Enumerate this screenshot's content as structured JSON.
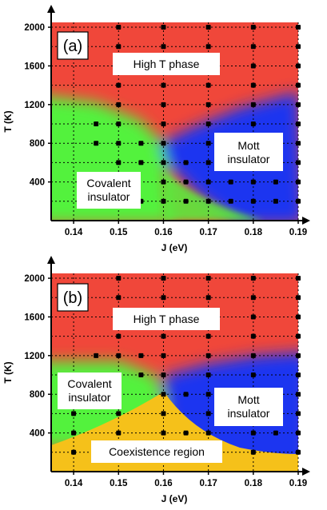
{
  "chart_data": [
    {
      "type": "heatmap",
      "panel_label": "(a)",
      "xlabel": "J (eV)",
      "ylabel": "T (K)",
      "xlim": [
        0.135,
        0.19
      ],
      "ylim": [
        0,
        2050
      ],
      "x_ticks": [
        "0.14",
        "0.15",
        "0.16",
        "0.17",
        "0.18",
        "0.19"
      ],
      "y_ticks": [
        "400",
        "800",
        "1200",
        "1600",
        "2000"
      ],
      "grid": "dotted",
      "regions": [
        {
          "label": "High T phase",
          "color": "#f0473a"
        },
        {
          "label": "Mott\ninsulator",
          "color": "#1a36f0"
        },
        {
          "label": "Covalent\ninsulator",
          "color": "#52f23c"
        }
      ],
      "points_x": [
        0.14,
        0.145,
        0.15,
        0.155,
        0.16,
        0.165,
        0.17,
        0.175,
        0.18,
        0.185,
        0.19
      ],
      "points_y": [
        200,
        400,
        600,
        800,
        1000,
        1200,
        1400,
        1600,
        1800,
        2000
      ],
      "points": [
        [
          0.15,
          2000
        ],
        [
          0.16,
          2000
        ],
        [
          0.17,
          2000
        ],
        [
          0.18,
          2000
        ],
        [
          0.19,
          2000
        ],
        [
          0.15,
          1800
        ],
        [
          0.16,
          1800
        ],
        [
          0.17,
          1800
        ],
        [
          0.18,
          1800
        ],
        [
          0.19,
          1800
        ],
        [
          0.15,
          1600
        ],
        [
          0.16,
          1600
        ],
        [
          0.17,
          1600
        ],
        [
          0.18,
          1600
        ],
        [
          0.19,
          1600
        ],
        [
          0.15,
          1400
        ],
        [
          0.16,
          1400
        ],
        [
          0.17,
          1400
        ],
        [
          0.18,
          1400
        ],
        [
          0.19,
          1400
        ],
        [
          0.15,
          1200
        ],
        [
          0.16,
          1200
        ],
        [
          0.17,
          1200
        ],
        [
          0.18,
          1200
        ],
        [
          0.19,
          1200
        ],
        [
          0.15,
          1000
        ],
        [
          0.16,
          1000
        ],
        [
          0.17,
          1000
        ],
        [
          0.18,
          1000
        ],
        [
          0.19,
          1000
        ],
        [
          0.15,
          800
        ],
        [
          0.16,
          800
        ],
        [
          0.17,
          800
        ],
        [
          0.18,
          800
        ],
        [
          0.19,
          800
        ],
        [
          0.15,
          600
        ],
        [
          0.16,
          600
        ],
        [
          0.17,
          600
        ],
        [
          0.18,
          600
        ],
        [
          0.19,
          600
        ],
        [
          0.15,
          400
        ],
        [
          0.16,
          400
        ],
        [
          0.17,
          400
        ],
        [
          0.18,
          400
        ],
        [
          0.19,
          400
        ],
        [
          0.15,
          200
        ],
        [
          0.16,
          200
        ],
        [
          0.17,
          200
        ],
        [
          0.18,
          200
        ],
        [
          0.19,
          200
        ],
        [
          0.145,
          1000
        ],
        [
          0.145,
          800
        ],
        [
          0.155,
          800
        ],
        [
          0.155,
          600
        ],
        [
          0.155,
          200
        ],
        [
          0.165,
          600
        ],
        [
          0.165,
          400
        ],
        [
          0.165,
          200
        ],
        [
          0.175,
          600
        ],
        [
          0.175,
          400
        ],
        [
          0.175,
          200
        ],
        [
          0.185,
          400
        ],
        [
          0.185,
          200
        ],
        [
          0.185,
          800
        ],
        [
          0.185,
          600
        ]
      ]
    },
    {
      "type": "heatmap",
      "panel_label": "(b)",
      "xlabel": "J (eV)",
      "ylabel": "T (K)",
      "xlim": [
        0.135,
        0.19
      ],
      "ylim": [
        0,
        2050
      ],
      "x_ticks": [
        "0.14",
        "0.15",
        "0.16",
        "0.17",
        "0.18",
        "0.19"
      ],
      "y_ticks": [
        "400",
        "800",
        "1200",
        "1600",
        "2000"
      ],
      "grid": "dotted",
      "regions": [
        {
          "label": "High T phase",
          "color": "#f0473a"
        },
        {
          "label": "Covalent\ninsulator",
          "color": "#52f23c"
        },
        {
          "label": "Mott\ninsulator",
          "color": "#1a36f0"
        },
        {
          "label": "Coexistence region",
          "color": "#f5c11a"
        }
      ],
      "points": [
        [
          0.15,
          2000
        ],
        [
          0.16,
          2000
        ],
        [
          0.17,
          2000
        ],
        [
          0.18,
          2000
        ],
        [
          0.19,
          2000
        ],
        [
          0.15,
          1800
        ],
        [
          0.16,
          1800
        ],
        [
          0.17,
          1800
        ],
        [
          0.18,
          1800
        ],
        [
          0.19,
          1800
        ],
        [
          0.15,
          1600
        ],
        [
          0.16,
          1600
        ],
        [
          0.17,
          1600
        ],
        [
          0.18,
          1600
        ],
        [
          0.19,
          1600
        ],
        [
          0.15,
          1400
        ],
        [
          0.16,
          1400
        ],
        [
          0.17,
          1400
        ],
        [
          0.18,
          1400
        ],
        [
          0.19,
          1400
        ],
        [
          0.145,
          1200
        ],
        [
          0.15,
          1200
        ],
        [
          0.155,
          1200
        ],
        [
          0.16,
          1200
        ],
        [
          0.17,
          1200
        ],
        [
          0.18,
          1200
        ],
        [
          0.19,
          1200
        ],
        [
          0.145,
          1000
        ],
        [
          0.15,
          1000
        ],
        [
          0.155,
          1000
        ],
        [
          0.16,
          1000
        ],
        [
          0.17,
          1000
        ],
        [
          0.18,
          1000
        ],
        [
          0.19,
          1000
        ],
        [
          0.16,
          800
        ],
        [
          0.17,
          800
        ],
        [
          0.18,
          800
        ],
        [
          0.19,
          800
        ],
        [
          0.14,
          600
        ],
        [
          0.15,
          600
        ],
        [
          0.16,
          600
        ],
        [
          0.17,
          600
        ],
        [
          0.18,
          600
        ],
        [
          0.19,
          600
        ],
        [
          0.14,
          400
        ],
        [
          0.15,
          400
        ],
        [
          0.16,
          400
        ],
        [
          0.17,
          400
        ],
        [
          0.18,
          400
        ],
        [
          0.19,
          400
        ],
        [
          0.14,
          200
        ],
        [
          0.15,
          200
        ],
        [
          0.16,
          200
        ],
        [
          0.17,
          200
        ],
        [
          0.18,
          200
        ],
        [
          0.19,
          200
        ],
        [
          0.165,
          800
        ],
        [
          0.175,
          800
        ],
        [
          0.185,
          800
        ],
        [
          0.165,
          400
        ],
        [
          0.185,
          400
        ]
      ]
    }
  ]
}
